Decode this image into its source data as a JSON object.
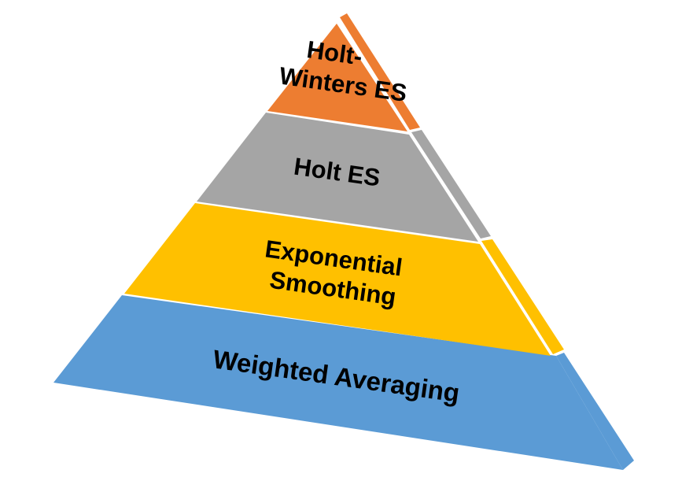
{
  "colors": {
    "background": "#ffffff",
    "divider": "#ffffff",
    "text": "#000000"
  },
  "tiers": [
    {
      "name": "top",
      "lines": [
        "Holt-",
        "Winters ES"
      ],
      "front_color": "#ED7D31",
      "side_color": "#ED7D31"
    },
    {
      "name": "second",
      "lines": [
        "Holt ES"
      ],
      "front_color": "#A5A5A5",
      "side_color": "#A5A5A5"
    },
    {
      "name": "third",
      "lines": [
        "Exponential",
        "Smoothing"
      ],
      "front_color": "#FFC000",
      "side_color": "#FFC000"
    },
    {
      "name": "base",
      "lines": [
        "Weighted Averaging"
      ],
      "front_color": "#5B9BD5",
      "side_color": "#5B9BD5"
    }
  ]
}
